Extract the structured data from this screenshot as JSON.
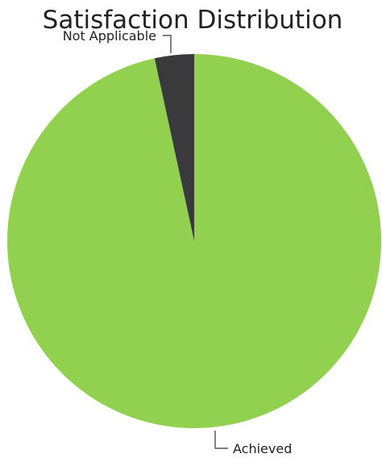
{
  "chart_data": {
    "type": "pie",
    "title": "Satisfaction Distribution",
    "slices": [
      {
        "label": "Achieved",
        "value": 96.6,
        "color": "#92d050"
      },
      {
        "label": "Not Applicable",
        "value": 3.4,
        "color": "#3a3a3c"
      }
    ],
    "legend": "none",
    "data_labels": "outside-with-leader-lines"
  }
}
